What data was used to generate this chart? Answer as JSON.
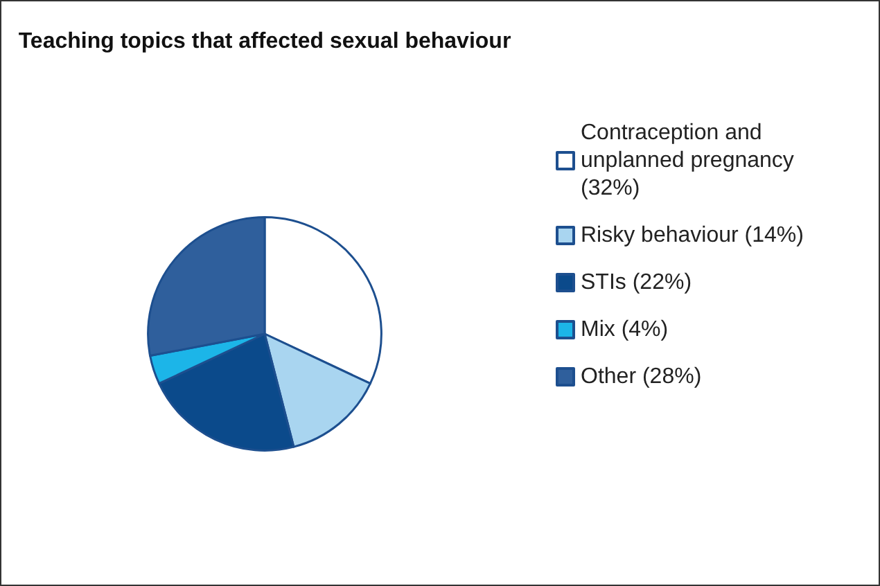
{
  "chart_data": {
    "type": "pie",
    "title": "Teaching topics that affected sexual behaviour",
    "categories": [
      "Contraception and unplanned pregnancy (32%)",
      "Risky behaviour (14%)",
      "STIs (22%)",
      "Mix (4%)",
      "Other (28%)"
    ],
    "values": [
      32,
      14,
      22,
      4,
      28
    ],
    "colors": [
      "#ffffff",
      "#a9d5f0",
      "#0b4a8b",
      "#1cb5e8",
      "#2f5f9c"
    ],
    "legend": "right"
  }
}
